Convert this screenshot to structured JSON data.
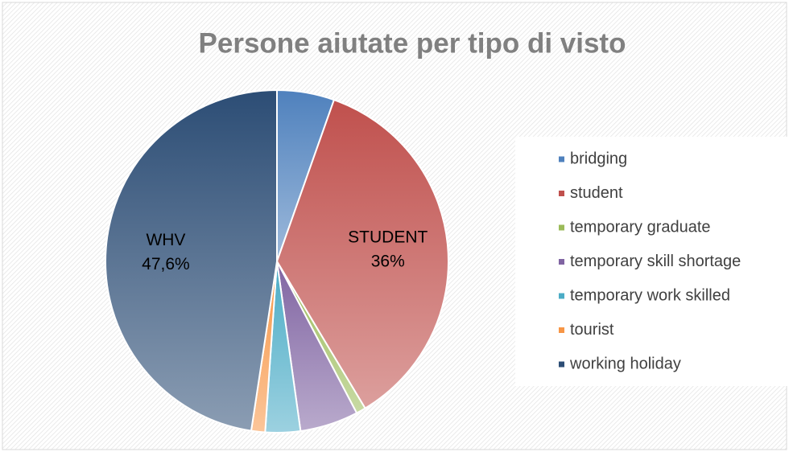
{
  "chart_data": {
    "type": "pie",
    "title": "Persone aiutate per tipo di visto",
    "categories": [
      "bridging",
      "student",
      "temporary graduate",
      "temporary skill shortage",
      "temporary work skilled",
      "tourist",
      "working holiday"
    ],
    "values": [
      5.4,
      36,
      0.9,
      5.5,
      3.3,
      1.3,
      47.6
    ],
    "colors": [
      "#4f81bd",
      "#c0504d",
      "#9bbb59",
      "#8064a2",
      "#4bacc6",
      "#f79646",
      "#2c4d75"
    ],
    "annotations": [
      {
        "category": "student",
        "text": "STUDENT",
        "value_label": "36%"
      },
      {
        "category": "working holiday",
        "text": "WHV",
        "value_label": "47,6%"
      }
    ],
    "legend": "right"
  }
}
